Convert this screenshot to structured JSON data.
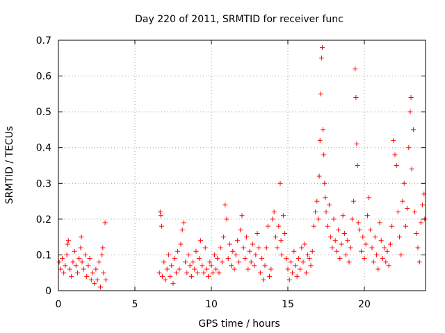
{
  "chart_data": {
    "type": "scatter",
    "title": "Day 220 of 2011, SRMTID for receiver func",
    "xlabel": "GPS time / hours",
    "ylabel": "SRMTID / TECUs",
    "xlim": [
      0,
      24
    ],
    "ylim": [
      0,
      0.7
    ],
    "xticks": [
      0,
      5,
      10,
      15,
      20
    ],
    "xtick_labels": [
      "0",
      "5",
      "10",
      "15",
      "20"
    ],
    "yticks": [
      0,
      0.1,
      0.2,
      0.3,
      0.4,
      0.5,
      0.6,
      0.7
    ],
    "ytick_labels": [
      "0",
      "0.1",
      "0.2",
      "0.3",
      "0.4",
      "0.5",
      "0.6",
      "0.7"
    ],
    "grid": true,
    "marker": "+",
    "colors": {
      "series": "#ff0000",
      "axis": "#000000",
      "grid": "#a0a0a0"
    },
    "series": [
      {
        "name": "SRMTID",
        "points": [
          [
            0.05,
            0.08
          ],
          [
            0.15,
            0.06
          ],
          [
            0.25,
            0.09
          ],
          [
            0.35,
            0.05
          ],
          [
            0.45,
            0.07
          ],
          [
            0.55,
            0.1
          ],
          [
            0.6,
            0.13
          ],
          [
            0.65,
            0.14
          ],
          [
            0.75,
            0.06
          ],
          [
            0.85,
            0.04
          ],
          [
            0.95,
            0.08
          ],
          [
            1.05,
            0.11
          ],
          [
            1.15,
            0.07
          ],
          [
            1.25,
            0.05
          ],
          [
            1.35,
            0.09
          ],
          [
            1.45,
            0.12
          ],
          [
            1.5,
            0.15
          ],
          [
            1.55,
            0.08
          ],
          [
            1.65,
            0.06
          ],
          [
            1.75,
            0.1
          ],
          [
            1.85,
            0.04
          ],
          [
            1.95,
            0.07
          ],
          [
            2.05,
            0.09
          ],
          [
            2.15,
            0.03
          ],
          [
            2.25,
            0.05
          ],
          [
            2.35,
            0.02
          ],
          [
            2.45,
            0.06
          ],
          [
            2.55,
            0.03
          ],
          [
            2.65,
            0.08
          ],
          [
            2.75,
            0.01
          ],
          [
            2.85,
            0.1
          ],
          [
            2.9,
            0.12
          ],
          [
            2.95,
            0.05
          ],
          [
            3.05,
            0.19
          ],
          [
            3.1,
            0.03
          ],
          [
            6.6,
            0.05
          ],
          [
            6.65,
            0.22
          ],
          [
            6.7,
            0.21
          ],
          [
            6.75,
            0.18
          ],
          [
            6.8,
            0.04
          ],
          [
            6.9,
            0.08
          ],
          [
            7.0,
            0.03
          ],
          [
            7.1,
            0.06
          ],
          [
            7.2,
            0.1
          ],
          [
            7.3,
            0.04
          ],
          [
            7.4,
            0.07
          ],
          [
            7.5,
            0.02
          ],
          [
            7.6,
            0.09
          ],
          [
            7.7,
            0.05
          ],
          [
            7.8,
            0.11
          ],
          [
            7.9,
            0.06
          ],
          [
            8.0,
            0.13
          ],
          [
            8.1,
            0.17
          ],
          [
            8.2,
            0.19
          ],
          [
            8.3,
            0.08
          ],
          [
            8.4,
            0.05
          ],
          [
            8.5,
            0.1
          ],
          [
            8.6,
            0.07
          ],
          [
            8.7,
            0.04
          ],
          [
            8.8,
            0.08
          ],
          [
            8.9,
            0.06
          ],
          [
            9.0,
            0.11
          ],
          [
            9.1,
            0.05
          ],
          [
            9.2,
            0.09
          ],
          [
            9.3,
            0.14
          ],
          [
            9.4,
            0.07
          ],
          [
            9.5,
            0.05
          ],
          [
            9.6,
            0.12
          ],
          [
            9.7,
            0.06
          ],
          [
            9.8,
            0.04
          ],
          [
            9.9,
            0.08
          ],
          [
            10.0,
            0.07
          ],
          [
            10.1,
            0.05
          ],
          [
            10.2,
            0.1
          ],
          [
            10.3,
            0.06
          ],
          [
            10.4,
            0.09
          ],
          [
            10.5,
            0.05
          ],
          [
            10.6,
            0.12
          ],
          [
            10.7,
            0.08
          ],
          [
            10.8,
            0.15
          ],
          [
            10.9,
            0.24
          ],
          [
            11.0,
            0.2
          ],
          [
            11.1,
            0.09
          ],
          [
            11.2,
            0.13
          ],
          [
            11.3,
            0.07
          ],
          [
            11.4,
            0.11
          ],
          [
            11.5,
            0.06
          ],
          [
            11.6,
            0.1
          ],
          [
            11.7,
            0.14
          ],
          [
            11.8,
            0.08
          ],
          [
            11.9,
            0.17
          ],
          [
            12.0,
            0.21
          ],
          [
            12.1,
            0.12
          ],
          [
            12.2,
            0.09
          ],
          [
            12.3,
            0.15
          ],
          [
            12.4,
            0.06
          ],
          [
            12.5,
            0.11
          ],
          [
            12.6,
            0.08
          ],
          [
            12.7,
            0.13
          ],
          [
            12.8,
            0.07
          ],
          [
            12.9,
            0.1
          ],
          [
            13.0,
            0.16
          ],
          [
            13.1,
            0.12
          ],
          [
            13.2,
            0.05
          ],
          [
            13.3,
            0.09
          ],
          [
            13.4,
            0.03
          ],
          [
            13.5,
            0.07
          ],
          [
            13.6,
            0.12
          ],
          [
            13.7,
            0.18
          ],
          [
            13.8,
            0.04
          ],
          [
            13.9,
            0.06
          ],
          [
            14.0,
            0.2
          ],
          [
            14.1,
            0.22
          ],
          [
            14.2,
            0.15
          ],
          [
            14.3,
            0.12
          ],
          [
            14.4,
            0.18
          ],
          [
            14.5,
            0.3
          ],
          [
            14.55,
            0.14
          ],
          [
            14.6,
            0.1
          ],
          [
            14.7,
            0.21
          ],
          [
            14.8,
            0.16
          ],
          [
            14.9,
            0.09
          ],
          [
            15.0,
            0.06
          ],
          [
            15.1,
            0.03
          ],
          [
            15.2,
            0.08
          ],
          [
            15.3,
            0.05
          ],
          [
            15.4,
            0.11
          ],
          [
            15.5,
            0.07
          ],
          [
            15.6,
            0.04
          ],
          [
            15.7,
            0.09
          ],
          [
            15.8,
            0.06
          ],
          [
            15.9,
            0.12
          ],
          [
            16.0,
            0.08
          ],
          [
            16.1,
            0.13
          ],
          [
            16.2,
            0.05
          ],
          [
            16.3,
            0.1
          ],
          [
            16.4,
            0.09
          ],
          [
            16.5,
            0.07
          ],
          [
            16.6,
            0.11
          ],
          [
            16.7,
            0.18
          ],
          [
            16.8,
            0.22
          ],
          [
            16.9,
            0.25
          ],
          [
            17.0,
            0.2
          ],
          [
            17.05,
            0.32
          ],
          [
            17.1,
            0.42
          ],
          [
            17.15,
            0.55
          ],
          [
            17.2,
            0.65
          ],
          [
            17.25,
            0.68
          ],
          [
            17.3,
            0.45
          ],
          [
            17.35,
            0.38
          ],
          [
            17.4,
            0.3
          ],
          [
            17.45,
            0.26
          ],
          [
            17.5,
            0.22
          ],
          [
            17.6,
            0.18
          ],
          [
            17.7,
            0.24
          ],
          [
            17.8,
            0.15
          ],
          [
            17.9,
            0.12
          ],
          [
            18.0,
            0.2
          ],
          [
            18.1,
            0.14
          ],
          [
            18.2,
            0.11
          ],
          [
            18.3,
            0.17
          ],
          [
            18.4,
            0.09
          ],
          [
            18.5,
            0.13
          ],
          [
            18.6,
            0.21
          ],
          [
            18.7,
            0.16
          ],
          [
            18.8,
            0.1
          ],
          [
            18.9,
            0.14
          ],
          [
            19.0,
            0.08
          ],
          [
            19.1,
            0.12
          ],
          [
            19.2,
            0.2
          ],
          [
            19.3,
            0.25
          ],
          [
            19.4,
            0.62
          ],
          [
            19.45,
            0.54
          ],
          [
            19.5,
            0.41
          ],
          [
            19.55,
            0.35
          ],
          [
            19.6,
            0.19
          ],
          [
            19.7,
            0.17
          ],
          [
            19.8,
            0.11
          ],
          [
            19.9,
            0.15
          ],
          [
            20.0,
            0.09
          ],
          [
            20.1,
            0.13
          ],
          [
            20.2,
            0.21
          ],
          [
            20.3,
            0.26
          ],
          [
            20.4,
            0.17
          ],
          [
            20.5,
            0.12
          ],
          [
            20.6,
            0.08
          ],
          [
            20.7,
            0.15
          ],
          [
            20.8,
            0.1
          ],
          [
            20.9,
            0.06
          ],
          [
            21.0,
            0.19
          ],
          [
            21.1,
            0.14
          ],
          [
            21.2,
            0.09
          ],
          [
            21.3,
            0.12
          ],
          [
            21.4,
            0.08
          ],
          [
            21.5,
            0.11
          ],
          [
            21.6,
            0.07
          ],
          [
            21.7,
            0.13
          ],
          [
            21.8,
            0.18
          ],
          [
            21.9,
            0.42
          ],
          [
            22.0,
            0.38
          ],
          [
            22.1,
            0.35
          ],
          [
            22.2,
            0.22
          ],
          [
            22.3,
            0.15
          ],
          [
            22.4,
            0.1
          ],
          [
            22.5,
            0.25
          ],
          [
            22.6,
            0.3
          ],
          [
            22.7,
            0.18
          ],
          [
            22.8,
            0.23
          ],
          [
            22.9,
            0.4
          ],
          [
            23.0,
            0.5
          ],
          [
            23.05,
            0.54
          ],
          [
            23.1,
            0.34
          ],
          [
            23.2,
            0.45
          ],
          [
            23.3,
            0.22
          ],
          [
            23.4,
            0.16
          ],
          [
            23.5,
            0.12
          ],
          [
            23.6,
            0.08
          ],
          [
            23.7,
            0.19
          ],
          [
            23.8,
            0.24
          ],
          [
            23.9,
            0.27
          ],
          [
            23.95,
            0.2
          ]
        ]
      }
    ]
  }
}
